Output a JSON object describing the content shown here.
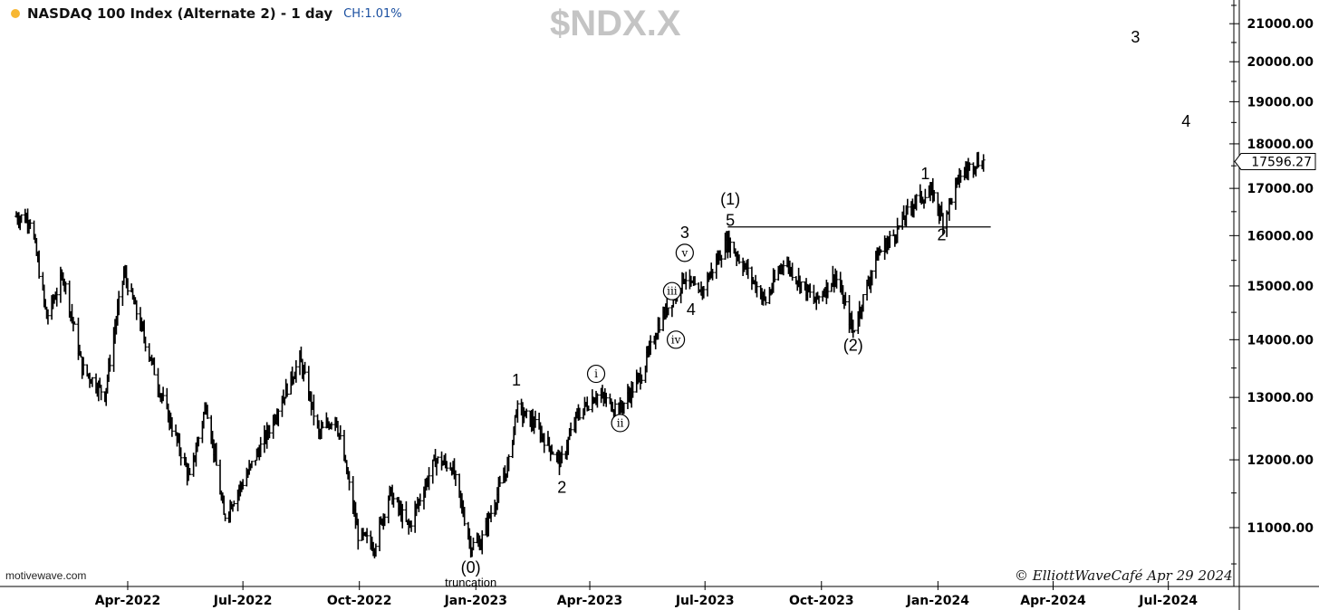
{
  "header": {
    "title": "NASDAQ 100 Index (Alternate 2) - 1 day",
    "change": "CH:1.01%",
    "symbol": "$NDX.X",
    "brand": "motivewave.com",
    "credit": "© ElliottWaveCafé Apr 29 2024"
  },
  "colors": {
    "bars": "#000000",
    "axis": "#000000",
    "watermark": "#c4c4c4",
    "status_dot": "#f7b733",
    "change_text": "#1a4fa0"
  },
  "chart_data": {
    "type": "ohlc",
    "title": "NASDAQ 100 Index (Alternate 2) - 1 day",
    "x_axis": {
      "labels": [
        "Apr-2022",
        "Jul-2022",
        "Oct-2022",
        "Jan-2023",
        "Apr-2023",
        "Jul-2023",
        "Oct-2023",
        "Jan-2024",
        "Apr-2024",
        "Jul-2024"
      ],
      "range": [
        "2022-01-03",
        "2024-08-01"
      ]
    },
    "y_axis": {
      "scale": "log",
      "ticks": [
        "11000.00",
        "12000.00",
        "13000.00",
        "14000.00",
        "15000.00",
        "16000.00",
        "17000.00",
        "18000.00",
        "19000.00",
        "20000.00",
        "21000.00"
      ],
      "range": [
        10200,
        21800
      ],
      "side": "right"
    },
    "last_price": "17596.27",
    "series": [
      {
        "points": [
          [
            "2022-01-03",
            16400
          ],
          [
            "2022-01-14",
            16350
          ],
          [
            "2022-01-27",
            14400
          ],
          [
            "2022-02-09",
            15200
          ],
          [
            "2022-02-24",
            13500
          ],
          [
            "2022-03-14",
            13050
          ],
          [
            "2022-03-29",
            15250
          ],
          [
            "2022-04-12",
            14200
          ],
          [
            "2022-04-28",
            13000
          ],
          [
            "2022-05-20",
            11700
          ],
          [
            "2022-06-02",
            12900
          ],
          [
            "2022-06-16",
            11150
          ],
          [
            "2022-07-05",
            11800
          ],
          [
            "2022-07-20",
            12400
          ],
          [
            "2022-08-15",
            13650
          ],
          [
            "2022-08-30",
            12400
          ],
          [
            "2022-09-12",
            12700
          ],
          [
            "2022-09-30",
            10900
          ],
          [
            "2022-10-13",
            10750
          ],
          [
            "2022-10-25",
            11500
          ],
          [
            "2022-11-09",
            11000
          ],
          [
            "2022-11-30",
            12000
          ],
          [
            "2022-12-13",
            11900
          ],
          [
            "2022-12-28",
            10750
          ],
          [
            "2023-01-05",
            10800
          ],
          [
            "2023-01-27",
            11950
          ],
          [
            "2023-02-02",
            12800
          ],
          [
            "2023-02-15",
            12600
          ],
          [
            "2023-03-09",
            11950
          ],
          [
            "2023-03-22",
            12700
          ],
          [
            "2023-04-06",
            13050
          ],
          [
            "2023-04-25",
            12800
          ],
          [
            "2023-05-12",
            13400
          ],
          [
            "2023-05-26",
            14300
          ],
          [
            "2023-06-15",
            15200
          ],
          [
            "2023-06-26",
            14800
          ],
          [
            "2023-07-19",
            15900
          ],
          [
            "2023-08-18",
            14700
          ],
          [
            "2023-09-01",
            15500
          ],
          [
            "2023-09-26",
            14700
          ],
          [
            "2023-10-12",
            15200
          ],
          [
            "2023-10-26",
            14150
          ],
          [
            "2023-11-14",
            15600
          ],
          [
            "2023-11-28",
            16050
          ],
          [
            "2023-12-14",
            16750
          ],
          [
            "2023-12-28",
            16900
          ],
          [
            "2024-01-05",
            16300
          ],
          [
            "2024-01-19",
            17300
          ],
          [
            "2024-01-31",
            17600
          ],
          [
            "2024-02-06",
            17596.27
          ]
        ]
      }
    ],
    "resistance_line": {
      "x_start": "2023-07-19",
      "x_end": "2024-02-06",
      "y": 16180
    },
    "annotations": [
      {
        "text": "(0)",
        "x": "2022-12-28",
        "y": 10380
      },
      {
        "text": "truncation",
        "x": "2022-12-28",
        "y": 10200
      },
      {
        "text": "1",
        "x": "2023-02-02",
        "y": 13200
      },
      {
        "text": "2",
        "x": "2023-03-10",
        "y": 11500
      },
      {
        "text": "i",
        "x": "2023-04-06",
        "y": 13400,
        "style": "circle"
      },
      {
        "text": "ii",
        "x": "2023-04-25",
        "y": 12580,
        "style": "circle"
      },
      {
        "text": "iii",
        "x": "2023-06-05",
        "y": 14900,
        "style": "circle"
      },
      {
        "text": "iv",
        "x": "2023-06-08",
        "y": 14000,
        "style": "circle"
      },
      {
        "text": "4",
        "x": "2023-06-20",
        "y": 14450
      },
      {
        "text": "v",
        "x": "2023-06-15",
        "y": 15650,
        "style": "circle"
      },
      {
        "text": "3",
        "x": "2023-06-15",
        "y": 15950
      },
      {
        "text": "(1)",
        "x": "2023-07-21",
        "y": 16650
      },
      {
        "text": "5",
        "x": "2023-07-21",
        "y": 16200
      },
      {
        "text": "(2)",
        "x": "2023-10-26",
        "y": 13800
      },
      {
        "text": "1",
        "x": "2023-12-22",
        "y": 17200
      },
      {
        "text": "2",
        "x": "2024-01-04",
        "y": 15900
      },
      {
        "text": "3",
        "x": "2024-06-05",
        "y": 20500
      },
      {
        "text": "4",
        "x": "2024-07-15",
        "y": 18400
      }
    ]
  }
}
